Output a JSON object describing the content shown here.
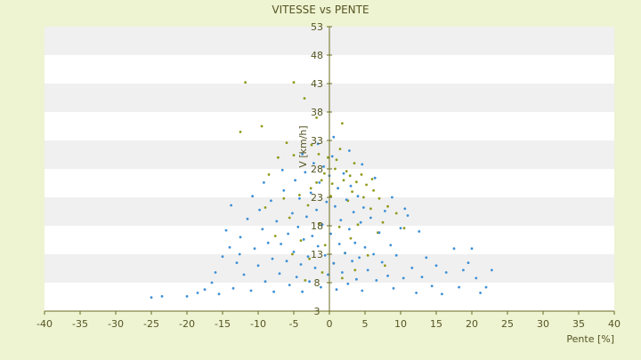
{
  "colors": {
    "background": "#eef3d2",
    "band_light": "#ffffff",
    "band_dark": "#f0f0f0",
    "axis": "#6b6b20",
    "text": "#555522",
    "series_blue": "#3c8fd6",
    "series_olive": "#8f9a1a"
  },
  "chart_data": {
    "type": "scatter",
    "title": "VITESSE vs PENTE",
    "xlabel": "Pente [%]",
    "ylabel": "V [km/h]",
    "xlim": [
      -40,
      40
    ],
    "ylim": [
      3,
      53
    ],
    "x_ticks": [
      "-40",
      "-35",
      "-30",
      "-25",
      "-20",
      "-15",
      "-10",
      "-5",
      "0",
      "5",
      "10",
      "15",
      "20",
      "25",
      "30",
      "35",
      "40"
    ],
    "y_ticks": [
      "3",
      "8",
      "13",
      "18",
      "23",
      "28",
      "33",
      "38",
      "43",
      "48",
      "53"
    ],
    "grid": "horizontal alternating bands",
    "legend": "none",
    "series": [
      {
        "color": "#8f9a1a",
        "points": [
          [
            -11.8,
            43.2
          ],
          [
            -5.0,
            43.2
          ],
          [
            -3.5,
            40.4
          ],
          [
            -9.5,
            35.5
          ],
          [
            -1.8,
            37.0
          ],
          [
            1.8,
            36.0
          ],
          [
            -12.5,
            34.5
          ],
          [
            -6.0,
            32.6
          ],
          [
            -2.5,
            32.2
          ],
          [
            -7.2,
            30.0
          ],
          [
            -5.0,
            30.4
          ],
          [
            -1.5,
            30.6
          ],
          [
            1.5,
            31.5
          ],
          [
            1.0,
            29.6
          ],
          [
            3.5,
            29.0
          ],
          [
            0.8,
            28.0
          ],
          [
            2.4,
            27.6
          ],
          [
            -0.7,
            27.2
          ],
          [
            4.5,
            27.0
          ],
          [
            -8.5,
            27.0
          ],
          [
            2.0,
            26.0
          ],
          [
            -1.8,
            25.6
          ],
          [
            3.8,
            25.7
          ],
          [
            5.2,
            25.2
          ],
          [
            6.2,
            24.2
          ],
          [
            -2.6,
            24.6
          ],
          [
            1.2,
            24.6
          ],
          [
            3.2,
            24.0
          ],
          [
            -4.2,
            23.4
          ],
          [
            4.8,
            23.0
          ],
          [
            7.0,
            22.8
          ],
          [
            -6.4,
            22.8
          ],
          [
            0.2,
            23.2
          ],
          [
            2.6,
            22.4
          ],
          [
            8.2,
            21.4
          ],
          [
            -3.0,
            21.6
          ],
          [
            5.8,
            21.0
          ],
          [
            9.4,
            20.2
          ],
          [
            -9.0,
            21.2
          ],
          [
            -5.6,
            19.4
          ],
          [
            7.5,
            18.6
          ],
          [
            4.0,
            18.2
          ],
          [
            1.4,
            17.8
          ],
          [
            -1.4,
            18.4
          ],
          [
            6.8,
            16.8
          ],
          [
            -7.6,
            16.2
          ],
          [
            3.0,
            15.8
          ],
          [
            -4.0,
            15.4
          ],
          [
            10.5,
            17.6
          ],
          [
            -0.6,
            14.6
          ],
          [
            2.2,
            13.2
          ],
          [
            5.4,
            12.8
          ],
          [
            -2.8,
            12.2
          ],
          [
            0.6,
            11.4
          ],
          [
            -1.0,
            9.8
          ],
          [
            3.6,
            10.2
          ],
          [
            7.8,
            11.0
          ],
          [
            -5.2,
            13.0
          ],
          [
            1.8,
            8.8
          ],
          [
            -3.4,
            8.4
          ],
          [
            -0.2,
            30.0
          ],
          [
            2.9,
            26.8
          ],
          [
            -1.1,
            26.0
          ],
          [
            0.4,
            25.4
          ],
          [
            6.0,
            26.2
          ]
        ]
      },
      {
        "color": "#3c8fd6",
        "points": [
          [
            -25.0,
            5.4
          ],
          [
            -23.5,
            5.6
          ],
          [
            -20.0,
            5.6
          ],
          [
            -17.5,
            6.8
          ],
          [
            -16.5,
            8.0
          ],
          [
            -16.0,
            9.8
          ],
          [
            -15.0,
            12.6
          ],
          [
            -14.0,
            14.2
          ],
          [
            -13.5,
            7.0
          ],
          [
            -13.0,
            11.5
          ],
          [
            -14.5,
            17.2
          ],
          [
            -13.8,
            21.6
          ],
          [
            -12.5,
            16.0
          ],
          [
            -11.5,
            19.2
          ],
          [
            -12.0,
            9.4
          ],
          [
            -11.0,
            6.6
          ],
          [
            -10.5,
            14.0
          ],
          [
            -10.0,
            11.0
          ],
          [
            -9.8,
            20.8
          ],
          [
            -9.4,
            17.4
          ],
          [
            -9.0,
            8.2
          ],
          [
            -8.6,
            15.0
          ],
          [
            -8.2,
            22.4
          ],
          [
            -8.0,
            12.2
          ],
          [
            -7.8,
            6.4
          ],
          [
            -7.4,
            18.8
          ],
          [
            -7.0,
            9.6
          ],
          [
            -6.8,
            14.8
          ],
          [
            -6.4,
            24.2
          ],
          [
            -6.0,
            11.8
          ],
          [
            -5.8,
            16.6
          ],
          [
            -5.6,
            7.6
          ],
          [
            -5.2,
            20.2
          ],
          [
            -5.0,
            13.4
          ],
          [
            -4.8,
            26.0
          ],
          [
            -4.6,
            9.0
          ],
          [
            -4.4,
            17.8
          ],
          [
            -4.2,
            22.8
          ],
          [
            -4.0,
            11.2
          ],
          [
            -3.8,
            6.4
          ],
          [
            -3.6,
            15.6
          ],
          [
            -3.4,
            27.4
          ],
          [
            -3.2,
            19.6
          ],
          [
            -3.0,
            12.6
          ],
          [
            -2.8,
            8.2
          ],
          [
            -2.6,
            23.8
          ],
          [
            -2.4,
            16.2
          ],
          [
            -2.2,
            29.0
          ],
          [
            -2.0,
            10.6
          ],
          [
            -1.8,
            20.8
          ],
          [
            -1.6,
            14.4
          ],
          [
            -1.4,
            25.6
          ],
          [
            -1.2,
            7.2
          ],
          [
            -1.0,
            18.2
          ],
          [
            -0.8,
            28.4
          ],
          [
            -0.6,
            12.8
          ],
          [
            -0.4,
            22.2
          ],
          [
            -0.2,
            9.4
          ],
          [
            0.0,
            26.8
          ],
          [
            0.2,
            16.6
          ],
          [
            0.4,
            30.2
          ],
          [
            0.6,
            11.4
          ],
          [
            0.8,
            21.4
          ],
          [
            1.0,
            6.8
          ],
          [
            1.2,
            24.6
          ],
          [
            1.4,
            14.8
          ],
          [
            1.6,
            19.0
          ],
          [
            1.8,
            9.8
          ],
          [
            2.0,
            27.2
          ],
          [
            2.2,
            13.2
          ],
          [
            2.4,
            22.6
          ],
          [
            2.6,
            7.8
          ],
          [
            2.8,
            17.4
          ],
          [
            3.0,
            25.0
          ],
          [
            3.2,
            11.8
          ],
          [
            3.4,
            20.4
          ],
          [
            3.6,
            15.0
          ],
          [
            3.8,
            8.6
          ],
          [
            4.0,
            23.2
          ],
          [
            4.2,
            12.4
          ],
          [
            4.4,
            18.6
          ],
          [
            4.6,
            6.6
          ],
          [
            4.8,
            21.2
          ],
          [
            5.0,
            14.2
          ],
          [
            5.4,
            10.2
          ],
          [
            5.8,
            19.4
          ],
          [
            6.2,
            13.0
          ],
          [
            6.6,
            8.4
          ],
          [
            7.0,
            16.8
          ],
          [
            7.4,
            11.6
          ],
          [
            7.8,
            20.6
          ],
          [
            8.2,
            9.2
          ],
          [
            8.6,
            14.6
          ],
          [
            9.0,
            7.0
          ],
          [
            9.4,
            12.8
          ],
          [
            10.0,
            17.6
          ],
          [
            10.4,
            8.8
          ],
          [
            11.0,
            19.8
          ],
          [
            11.6,
            10.6
          ],
          [
            12.2,
            6.2
          ],
          [
            13.0,
            9.0
          ],
          [
            13.6,
            12.4
          ],
          [
            14.4,
            7.4
          ],
          [
            15.0,
            11.0
          ],
          [
            15.8,
            6.0
          ],
          [
            16.4,
            9.8
          ],
          [
            17.5,
            14.0
          ],
          [
            18.2,
            7.2
          ],
          [
            18.8,
            10.2
          ],
          [
            19.5,
            11.5
          ],
          [
            20.0,
            14.0
          ],
          [
            20.6,
            8.8
          ],
          [
            21.2,
            6.2
          ],
          [
            22.0,
            7.2
          ],
          [
            22.8,
            10.2
          ],
          [
            -15.5,
            6.0
          ],
          [
            -18.5,
            6.2
          ],
          [
            -12.6,
            13.0
          ],
          [
            -10.8,
            23.2
          ],
          [
            -9.2,
            25.6
          ],
          [
            -6.6,
            27.8
          ],
          [
            -3.8,
            30.6
          ],
          [
            -1.6,
            32.4
          ],
          [
            0.6,
            33.6
          ],
          [
            2.8,
            31.2
          ],
          [
            4.6,
            28.8
          ],
          [
            6.4,
            26.4
          ],
          [
            8.8,
            23.0
          ],
          [
            10.6,
            21.0
          ],
          [
            12.6,
            17.0
          ]
        ]
      }
    ]
  }
}
